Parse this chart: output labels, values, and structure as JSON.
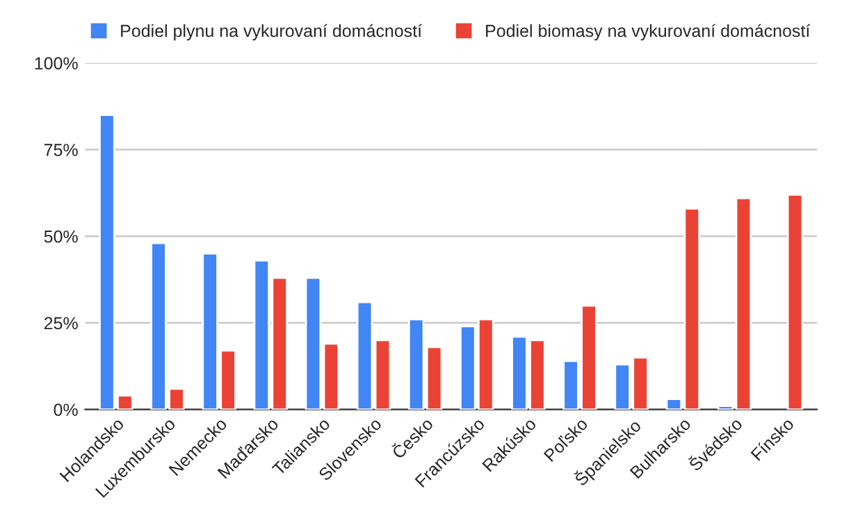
{
  "chart_data": {
    "type": "bar",
    "categories": [
      "Holandsko",
      "Luxembursko",
      "Nemecko",
      "Maďarsko",
      "Taliansko",
      "Slovensko",
      "Česko",
      "Francúzsko",
      "Rakúsko",
      "Poľsko",
      "Španielsko",
      "Bulharsko",
      "Švédsko",
      "Fínsko"
    ],
    "series": [
      {
        "name": "Podiel plynu na vykurovaní domácností",
        "color": "#4285f4",
        "values": [
          85,
          48,
          45,
          43,
          38,
          31,
          26,
          24,
          21,
          14,
          13,
          3,
          1,
          null
        ]
      },
      {
        "name": "Podiel biomasy na vykurovaní domácností",
        "color": "#ea4335",
        "values": [
          4,
          6,
          17,
          38,
          19,
          20,
          18,
          26,
          20,
          30,
          15,
          58,
          61,
          62
        ]
      }
    ],
    "ylim": [
      0,
      100
    ],
    "yticks": [
      {
        "value": 0,
        "label": "0%"
      },
      {
        "value": 25,
        "label": "25%"
      },
      {
        "value": 50,
        "label": "50%"
      },
      {
        "value": 75,
        "label": "75%"
      },
      {
        "value": 100,
        "label": "100%"
      }
    ],
    "grid": "y",
    "legend": "top"
  }
}
